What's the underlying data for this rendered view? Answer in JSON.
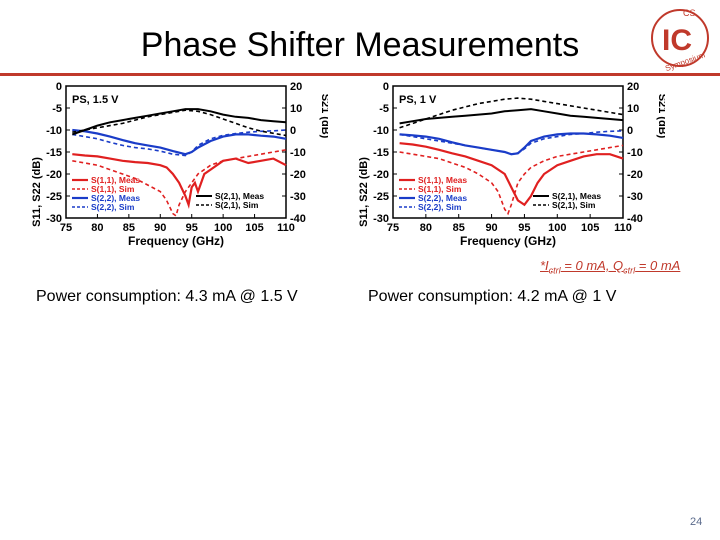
{
  "title": "Phase Shifter Measurements",
  "logo": {
    "top_text": "CS",
    "letters": "IC",
    "ring_text": "Symposium"
  },
  "note": {
    "prefix": "*I",
    "sub1": "ctrl",
    "mid": " = 0 mA, Q",
    "sub2": "ctrl",
    "suffix": " = 0 mA"
  },
  "power": [
    "Power consumption: 4.3 mA @ 1.5 V",
    "Power consumption: 4.2 mA @ 1 V"
  ],
  "page_number": "24",
  "colors": {
    "meas11": "#e02020",
    "sim11": "#e02020",
    "meas22": "#1a3cc8",
    "sim22": "#1a3cc8",
    "s21": "#000000",
    "accent": "#c0392b"
  },
  "chart_data": [
    {
      "type": "line",
      "annotation": "PS, 1.5 V",
      "xlabel": "Frequency (GHz)",
      "ylabel_left": "S11, S22 (dB)",
      "ylabel_right": "S21 (dB)",
      "xlim": [
        75,
        110
      ],
      "ylim_left": [
        -30,
        0
      ],
      "ylim_right": [
        -40,
        20
      ],
      "xticks": [
        "75",
        "80",
        "85",
        "90",
        "95",
        "100",
        "105",
        "110"
      ],
      "yticks_left": [
        "0",
        "-5",
        "-10",
        "-15",
        "-20",
        "-25",
        "-30"
      ],
      "yticks_right": [
        "20",
        "10",
        "0",
        "-10",
        "-20",
        "-30",
        "-40"
      ],
      "legend_left": [
        "S(1,1), Meas",
        "S(1,1), Sim",
        "S(2,2), Meas",
        "S(2,2), Sim"
      ],
      "legend_right": [
        "S(2,1), Meas",
        "S(2,1), Sim"
      ],
      "series": [
        {
          "name": "S(1,1), Meas",
          "axis": "left",
          "style": "meas11",
          "x": [
            76,
            78,
            80,
            82,
            84,
            86,
            88,
            90,
            91,
            92,
            93,
            94,
            94.5,
            95,
            95.5,
            96,
            97,
            98,
            100,
            102,
            104,
            106,
            108,
            110
          ],
          "y": [
            -15.5,
            -15.8,
            -16,
            -16.5,
            -17,
            -17.3,
            -17.5,
            -18,
            -18.5,
            -20,
            -22,
            -25,
            -27,
            -23,
            -22,
            -24,
            -20,
            -19,
            -17,
            -16.5,
            -17.5,
            -17,
            -16.5,
            -18
          ]
        },
        {
          "name": "S(1,1), Sim",
          "axis": "left",
          "style": "sim11",
          "x": [
            76,
            78,
            80,
            82,
            84,
            86,
            88,
            90,
            91,
            92,
            92.5,
            93,
            94,
            95,
            96,
            98,
            100,
            102,
            104,
            106,
            108,
            110
          ],
          "y": [
            -17,
            -17.5,
            -18,
            -19,
            -20,
            -21,
            -22.5,
            -24,
            -26,
            -29,
            -29.5,
            -27,
            -24,
            -22,
            -20,
            -18,
            -17,
            -16.5,
            -16,
            -15.5,
            -15,
            -14.5
          ]
        },
        {
          "name": "S(2,2), Meas",
          "axis": "left",
          "style": "meas22",
          "x": [
            76,
            78,
            80,
            82,
            84,
            86,
            88,
            90,
            92,
            94,
            95,
            96,
            98,
            100,
            102,
            104,
            106,
            108,
            110
          ],
          "y": [
            -10,
            -10.3,
            -10.8,
            -11.5,
            -12.3,
            -13,
            -13.5,
            -14,
            -14.8,
            -15.5,
            -15,
            -14,
            -12.5,
            -11.5,
            -11,
            -11,
            -11.3,
            -11.5,
            -12
          ]
        },
        {
          "name": "S(2,2), Sim",
          "axis": "left",
          "style": "sim22",
          "x": [
            76,
            78,
            80,
            82,
            84,
            86,
            88,
            90,
            92,
            94,
            95,
            96,
            98,
            100,
            102,
            104,
            106,
            108,
            110
          ],
          "y": [
            -11,
            -11.5,
            -12,
            -12.8,
            -13.5,
            -14,
            -14.3,
            -14.8,
            -15.5,
            -15.8,
            -15,
            -13.5,
            -12,
            -11.2,
            -10.8,
            -10.5,
            -10.3,
            -10.2,
            -10
          ]
        },
        {
          "name": "S(2,1), Meas",
          "axis": "right",
          "style": "meas21",
          "x": [
            76,
            78,
            80,
            82,
            84,
            86,
            88,
            90,
            92,
            94,
            96,
            98,
            100,
            102,
            104,
            106,
            108,
            110
          ],
          "y": [
            -2,
            0,
            2,
            3.5,
            4.5,
            5.5,
            6.5,
            7.5,
            8.5,
            9.5,
            9.5,
            8.5,
            7,
            6,
            5.5,
            4.5,
            4,
            3.5
          ]
        },
        {
          "name": "S(2,1), Sim",
          "axis": "right",
          "style": "sim21",
          "x": [
            76,
            78,
            80,
            82,
            84,
            86,
            88,
            90,
            92,
            94,
            96,
            98,
            100,
            102,
            104,
            106,
            108,
            110
          ],
          "y": [
            -1,
            0,
            1,
            2,
            3,
            4.5,
            6,
            7,
            8,
            9,
            8.5,
            7,
            5,
            3,
            1,
            -0.5,
            -1.5,
            -2.5
          ]
        }
      ]
    },
    {
      "type": "line",
      "annotation": "PS, 1 V",
      "xlabel": "Frequency (GHz)",
      "ylabel_left": "S11, S22 (dB)",
      "ylabel_right": "S21 (dB)",
      "xlim": [
        75,
        110
      ],
      "ylim_left": [
        -30,
        0
      ],
      "ylim_right": [
        -40,
        20
      ],
      "xticks": [
        "75",
        "80",
        "85",
        "90",
        "95",
        "100",
        "105",
        "110"
      ],
      "yticks_left": [
        "0",
        "-5",
        "-10",
        "-15",
        "-20",
        "-25",
        "-30"
      ],
      "yticks_right": [
        "20",
        "10",
        "0",
        "-10",
        "-20",
        "-30",
        "-40"
      ],
      "legend_left": [
        "S(1,1), Meas",
        "S(1,1), Sim",
        "S(2,2), Meas",
        "S(2,2), Sim"
      ],
      "legend_right": [
        "S(2,1), Meas",
        "S(2,1), Sim"
      ],
      "series": [
        {
          "name": "S(1,1), Meas",
          "axis": "left",
          "style": "meas11",
          "x": [
            76,
            78,
            80,
            82,
            84,
            86,
            88,
            90,
            92,
            93,
            94,
            95,
            96,
            97,
            98,
            100,
            102,
            104,
            106,
            108,
            110
          ],
          "y": [
            -13,
            -13.3,
            -13.8,
            -14.5,
            -15.3,
            -16,
            -17,
            -18,
            -20,
            -23,
            -26,
            -27,
            -25,
            -22,
            -20,
            -18,
            -17,
            -16,
            -15.5,
            -15.5,
            -16.5
          ]
        },
        {
          "name": "S(1,1), Sim",
          "axis": "left",
          "style": "sim11",
          "x": [
            76,
            78,
            80,
            82,
            84,
            86,
            88,
            90,
            91,
            92,
            92.5,
            93,
            94,
            95,
            96,
            98,
            100,
            102,
            104,
            106,
            108,
            110
          ],
          "y": [
            -15,
            -15.5,
            -16,
            -16.5,
            -17.5,
            -18.5,
            -20,
            -22,
            -24,
            -28,
            -29,
            -27,
            -22,
            -20,
            -18.5,
            -17,
            -16,
            -15.5,
            -15,
            -14.5,
            -14,
            -13.5
          ]
        },
        {
          "name": "S(2,2), Meas",
          "axis": "left",
          "style": "meas22",
          "x": [
            76,
            78,
            80,
            82,
            84,
            86,
            88,
            90,
            92,
            93,
            94,
            95,
            96,
            98,
            100,
            102,
            104,
            106,
            108,
            110
          ],
          "y": [
            -11,
            -11.2,
            -11.5,
            -12,
            -12.8,
            -13.5,
            -14,
            -14.5,
            -15,
            -15.5,
            -15.3,
            -14,
            -12.5,
            -11.5,
            -11,
            -10.8,
            -10.8,
            -11,
            -11.3,
            -11.8
          ]
        },
        {
          "name": "S(2,2), Sim",
          "axis": "left",
          "style": "sim22",
          "x": [
            76,
            78,
            80,
            82,
            84,
            86,
            88,
            90,
            92,
            93,
            94,
            95,
            96,
            98,
            100,
            102,
            104,
            106,
            108,
            110
          ],
          "y": [
            -11,
            -11.5,
            -12,
            -12.5,
            -13,
            -13.5,
            -14,
            -14.5,
            -15,
            -15.5,
            -15.2,
            -14.3,
            -13,
            -12,
            -11.5,
            -11,
            -10.8,
            -10.5,
            -10.3,
            -10.2
          ]
        },
        {
          "name": "S(2,1), Meas",
          "axis": "right",
          "style": "meas21",
          "x": [
            76,
            78,
            80,
            82,
            84,
            86,
            88,
            90,
            92,
            94,
            96,
            98,
            100,
            102,
            104,
            106,
            108,
            110
          ],
          "y": [
            3,
            4,
            5,
            5.5,
            6,
            6.5,
            7,
            7.5,
            8.5,
            9,
            9.5,
            8.5,
            7.5,
            6.5,
            6,
            5.5,
            5,
            4.5
          ]
        },
        {
          "name": "S(2,1), Sim",
          "axis": "right",
          "style": "sim21",
          "x": [
            76,
            78,
            80,
            82,
            84,
            86,
            88,
            90,
            92,
            94,
            96,
            98,
            100,
            102,
            104,
            106,
            108,
            110
          ],
          "y": [
            1,
            3,
            5,
            7,
            9,
            10.5,
            12,
            13,
            14,
            14.5,
            14,
            13,
            12,
            11,
            10,
            9,
            8,
            7
          ]
        }
      ]
    }
  ]
}
